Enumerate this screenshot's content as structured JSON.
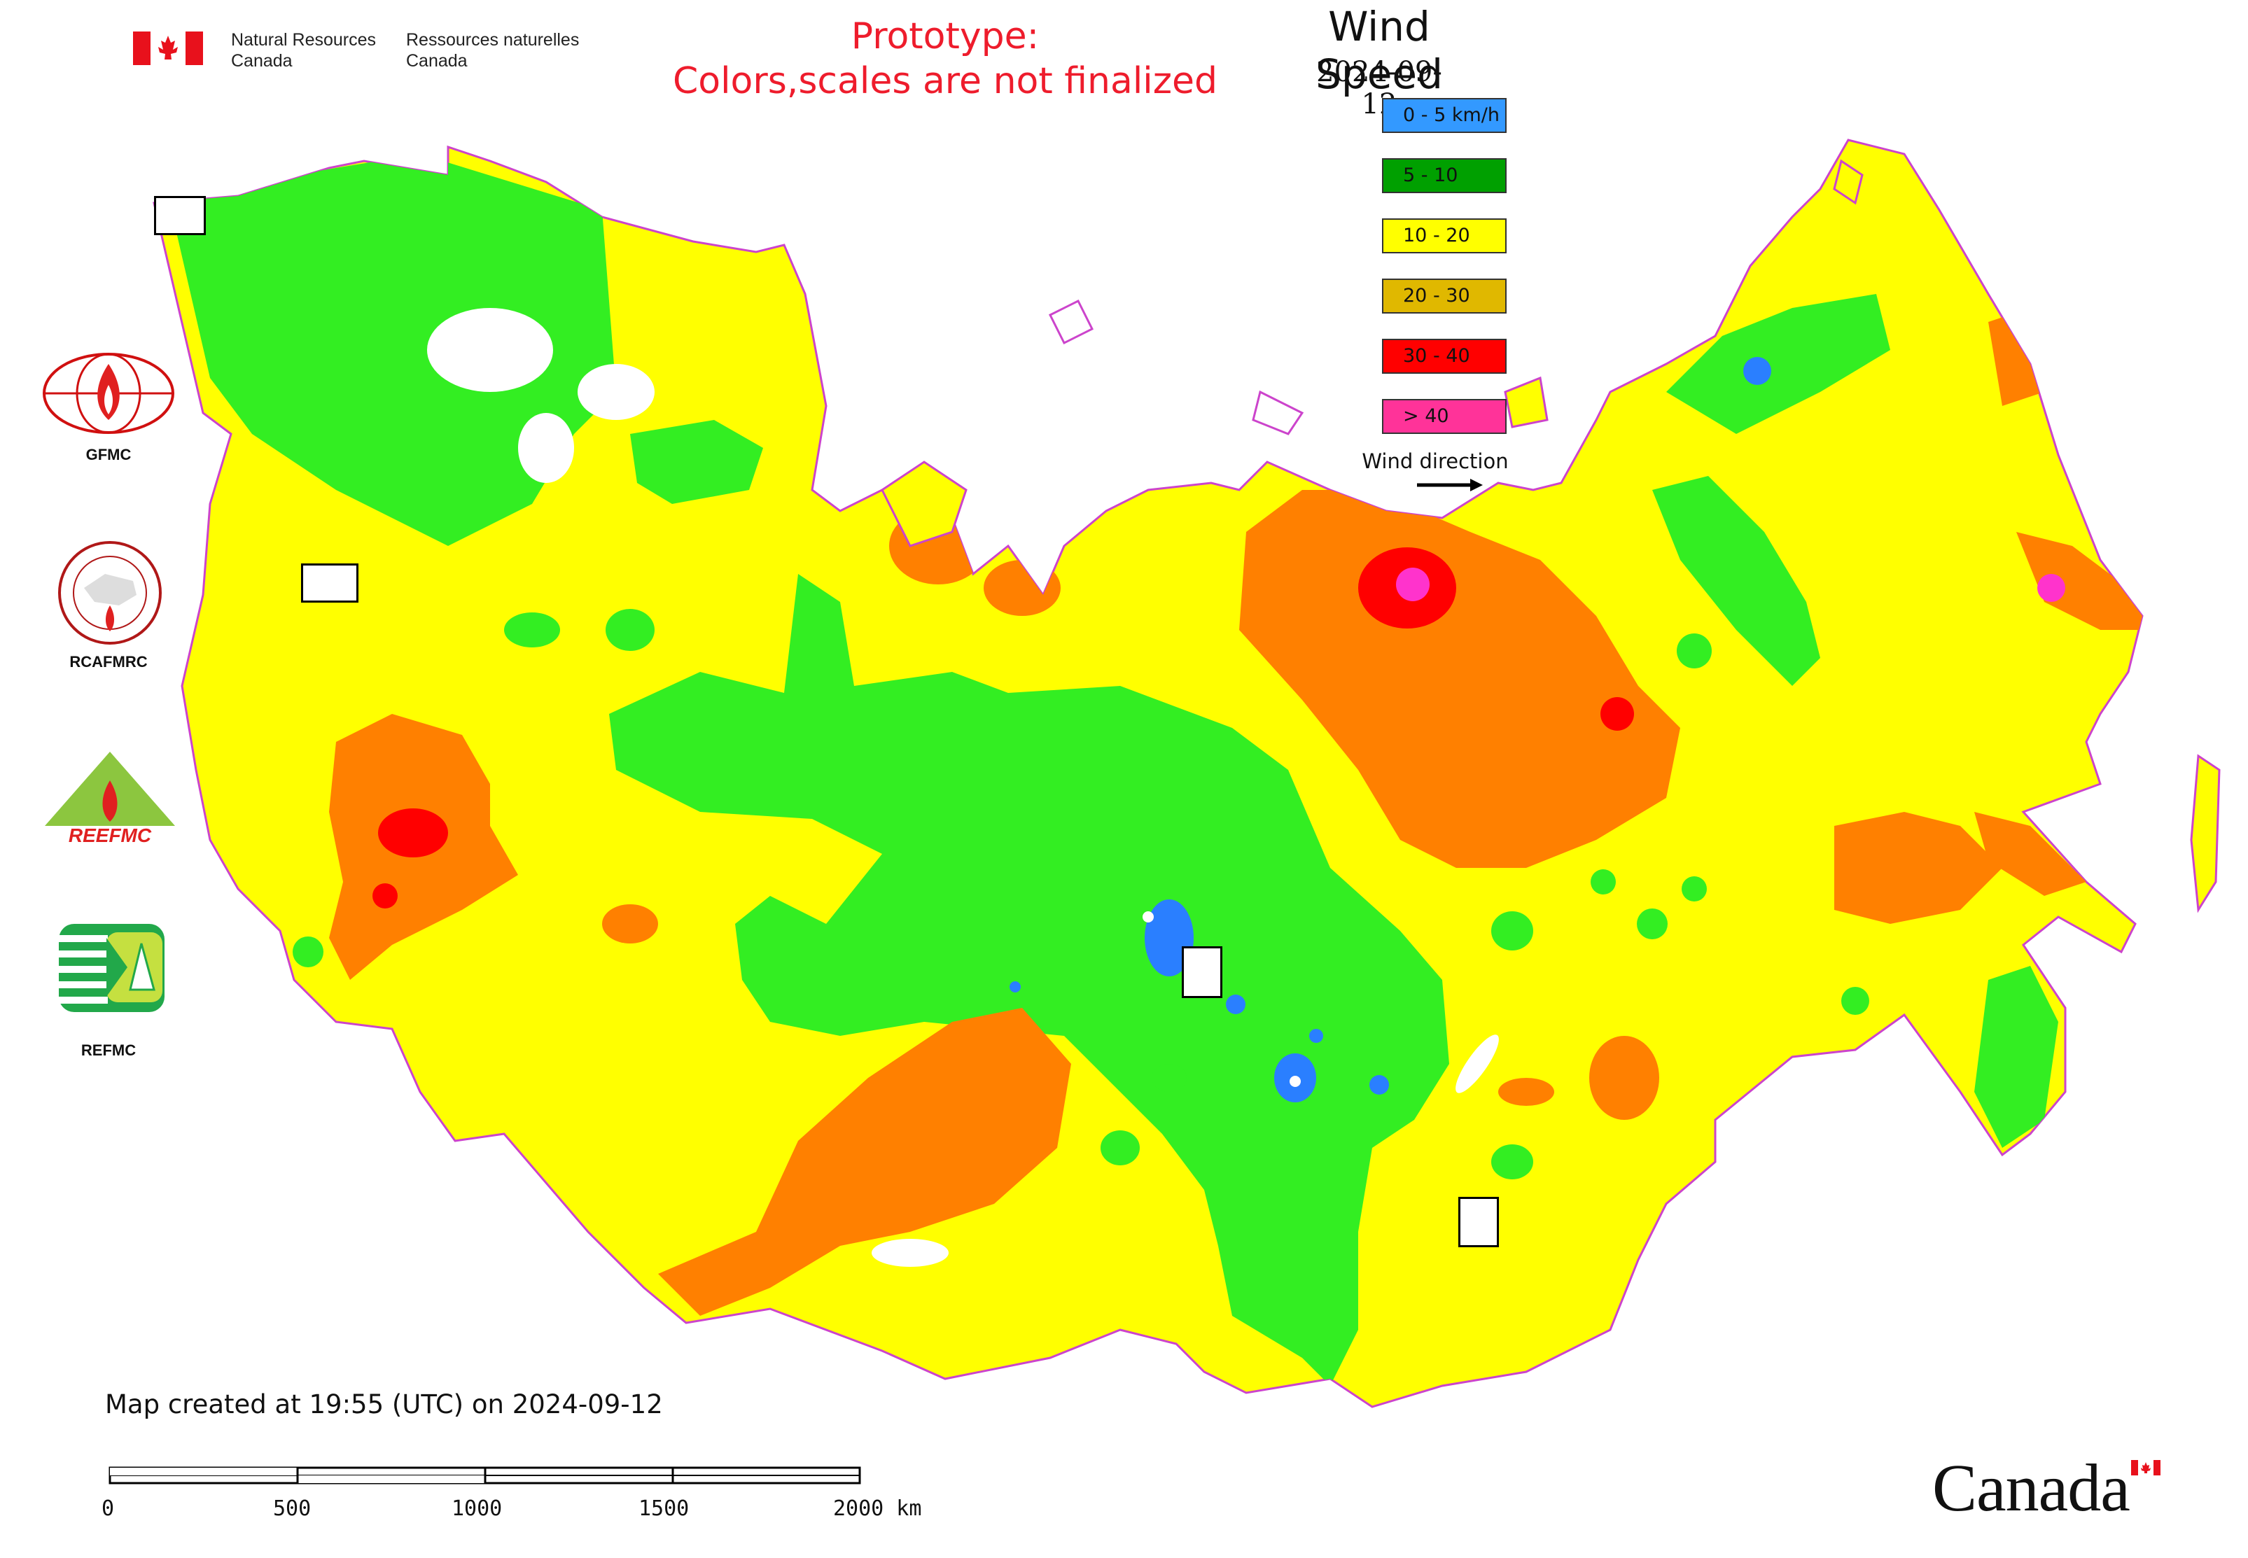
{
  "header": {
    "gov_en_line1": "Natural Resources",
    "gov_en_line2": "Canada",
    "gov_fr_line1": "Ressources naturelles",
    "gov_fr_line2": "Canada",
    "prototype_line1": "Prototype:",
    "prototype_line2": "Colors,scales are not finalized"
  },
  "legend": {
    "title": "Wind Speed",
    "date": "2024-09-12",
    "items": [
      {
        "label": "0 - 5 km/h",
        "color": "#3399ff"
      },
      {
        "label": "5 - 10",
        "color": "#00a000"
      },
      {
        "label": "10 - 20",
        "color": "#ffff00"
      },
      {
        "label": "20 - 30",
        "color": "#e0b800"
      },
      {
        "label": "30 - 40",
        "color": "#ff0000"
      },
      {
        "label": "> 40",
        "color": "#ff3399"
      }
    ],
    "wind_direction_label": "Wind direction"
  },
  "map_colors": {
    "land_default": "#ffff00",
    "green": "#33ee22",
    "orange": "#ff8000",
    "red": "#ff0000",
    "blue": "#2a7fff",
    "magenta": "#ff33cc",
    "border": "#cc44cc"
  },
  "logos": {
    "gfmc": "GFMC",
    "rcafmrc": "RCAFMRC",
    "reefmc": "REEFMC",
    "refmc": "REFMC"
  },
  "footer": {
    "created": "Map created at 19:55 (UTC) on 2024-09-12",
    "scale_ticks": [
      "0",
      "500",
      "1000",
      "1500",
      "2000 km"
    ],
    "wordmark": "Canada"
  }
}
